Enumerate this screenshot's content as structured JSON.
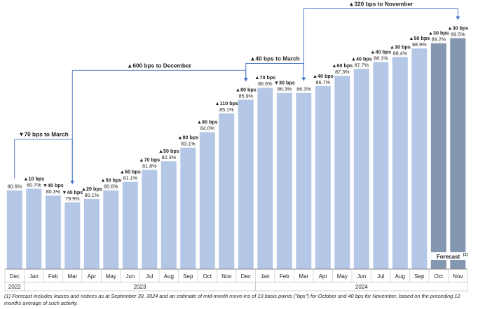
{
  "chart_data": {
    "type": "bar",
    "categories": [
      "Dec",
      "Jan",
      "Feb",
      "Mar",
      "Apr",
      "May",
      "Jun",
      "Jul",
      "Aug",
      "Sep",
      "Oct",
      "Nov",
      "Dec",
      "Jan",
      "Feb",
      "Mar",
      "Apr",
      "May",
      "Jun",
      "Jul",
      "Aug",
      "Sep",
      "Oct",
      "Nov"
    ],
    "values": [
      80.6,
      80.7,
      80.3,
      79.9,
      80.1,
      80.6,
      81.1,
      81.8,
      82.3,
      83.1,
      84.0,
      85.1,
      85.9,
      86.6,
      86.3,
      86.3,
      86.7,
      87.3,
      87.7,
      88.1,
      88.4,
      88.9,
      89.2,
      89.5
    ],
    "value_labels": [
      "80.6%",
      "80.7%",
      "80.3%",
      "79.9%",
      "80.1%",
      "80.6%",
      "81.1%",
      "81.8%",
      "82.3%",
      "83.1%",
      "84.0%",
      "85.1%",
      "85.9%",
      "86.6%",
      "86.3%",
      "86.3%",
      "86.7%",
      "87.3%",
      "87.7%",
      "88.1%",
      "88.4%",
      "88.9%",
      "89.2%",
      "89.5%"
    ],
    "changes": [
      "",
      "▲10 bps",
      "▼40 bps",
      "▼40 bps",
      "▲20 bps",
      "▲50 bps",
      "▲50 bps",
      "▲70 bps",
      "▲50 bps",
      "▲80 bps",
      "▲90 bps",
      "▲110 bps",
      "▲80 bps",
      "▲70 bps",
      "▼30 bps",
      "",
      "▲40 bps",
      "▲60 bps",
      "▲40 bps",
      "▲40 bps",
      "▲30 bps",
      "▲50 bps",
      "▲30 bps",
      "▲30 bps"
    ],
    "forecast": [
      false,
      false,
      false,
      false,
      false,
      false,
      false,
      false,
      false,
      false,
      false,
      false,
      false,
      false,
      false,
      false,
      false,
      false,
      false,
      false,
      false,
      false,
      true,
      true
    ],
    "forecast_label": "Forecast",
    "forecast_sup": "(1)",
    "years": [
      {
        "label": "2022",
        "start": 0,
        "end": 0
      },
      {
        "label": "2023",
        "start": 1,
        "end": 12
      },
      {
        "label": "2024",
        "start": 13,
        "end": 23
      }
    ],
    "brackets": [
      {
        "label": "▼70 bps to March",
        "from": 0,
        "to": 3
      },
      {
        "label": "▲600 bps to December",
        "from": 3,
        "to": 12
      },
      {
        "label": "▲40 bps to March",
        "from": 12,
        "to": 15
      },
      {
        "label": "▲320 bps to November",
        "from": 15,
        "to": 23
      }
    ],
    "ylim": [
      76.0,
      90.5
    ],
    "colors": {
      "actual": "#b4c7e7",
      "forecast": "#8497b0",
      "bracket": "#4472c4",
      "grid": "#c0c0c0"
    }
  },
  "footnote": "(1) Forecast includes leases and notices as at September 30, 2024 and an estimate of mid-month move-ins of 10 basis points (\"bps\") for October and 40 bps for November, based on the preceding 12 months average of such activity."
}
